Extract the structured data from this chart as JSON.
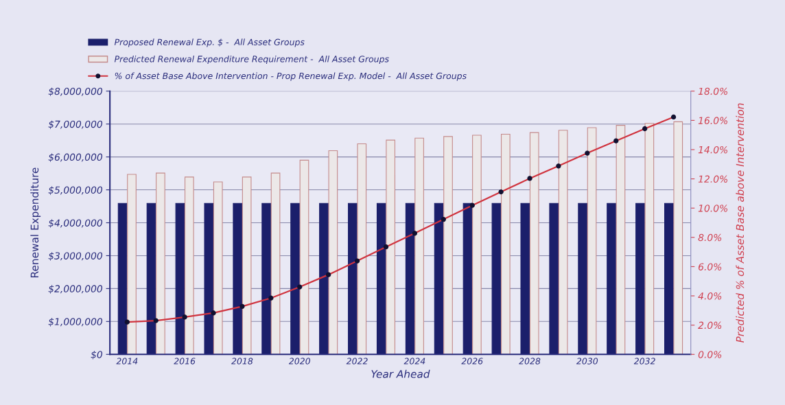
{
  "chart_data": {
    "type": "bar",
    "xlabel": "Year Ahead",
    "ylabel": "Renewal Expenditure",
    "y2label": "Predicted % of Asset Base above Intervention",
    "categories": [
      "2014",
      null,
      "2016",
      null,
      "2018",
      null,
      "2020",
      null,
      "2022",
      null,
      "2024",
      null,
      "2026",
      null,
      "2028",
      null,
      "2030",
      null,
      "2032",
      null
    ],
    "series": [
      {
        "name": "Proposed Renewal Exp. $ -  All Asset Groups",
        "color": "#1b1f6b",
        "values": [
          4590000,
          4590000,
          4590000,
          4590000,
          4590000,
          4590000,
          4590000,
          4590000,
          4590000,
          4590000,
          4590000,
          4590000,
          4590000,
          4590000,
          4590000,
          4590000,
          4590000,
          4590000,
          4590000,
          4590000
        ]
      },
      {
        "name": "Predicted Renewal Expenditure Requirement -  All Asset Groups",
        "color": "#ece8e8",
        "values": [
          5470000,
          5510000,
          5390000,
          5240000,
          5390000,
          5510000,
          5900000,
          6190000,
          6400000,
          6510000,
          6570000,
          6620000,
          6660000,
          6690000,
          6740000,
          6810000,
          6890000,
          6960000,
          7020000,
          7070000
        ]
      },
      {
        "name": "% of Asset Base Above Intervention - Prop Renewal Exp. Model -  All Asset Groups",
        "type": "line",
        "axis": "y2",
        "color": "#d0343f",
        "marker": "circle",
        "values": [
          2.21,
          2.31,
          2.55,
          2.83,
          3.28,
          3.85,
          4.61,
          5.45,
          6.39,
          7.35,
          8.28,
          9.23,
          10.19,
          11.11,
          12.03,
          12.88,
          13.76,
          14.6,
          15.43,
          16.23
        ]
      }
    ],
    "ylim": [
      0,
      8000000
    ],
    "yticks": [
      {
        "value": 0,
        "label": "$0"
      },
      {
        "value": 1000000,
        "label": "$1,000,000"
      },
      {
        "value": 2000000,
        "label": "$2,000,000"
      },
      {
        "value": 3000000,
        "label": "$3,000,000"
      },
      {
        "value": 4000000,
        "label": "$4,000,000"
      },
      {
        "value": 5000000,
        "label": "$5,000,000"
      },
      {
        "value": 6000000,
        "label": "$6,000,000"
      },
      {
        "value": 7000000,
        "label": "$7,000,000"
      },
      {
        "value": 8000000,
        "label": "$8,000,000"
      }
    ],
    "y2lim": [
      0,
      18
    ],
    "y2ticks": [
      {
        "value": 0,
        "label": "0.0%"
      },
      {
        "value": 2,
        "label": "2.0%"
      },
      {
        "value": 4,
        "label": "4.0%"
      },
      {
        "value": 6,
        "label": "6.0%"
      },
      {
        "value": 8,
        "label": "8.0%"
      },
      {
        "value": 10,
        "label": "10.0%"
      },
      {
        "value": 12,
        "label": "12.0%"
      },
      {
        "value": 14,
        "label": "14.0%"
      },
      {
        "value": 16,
        "label": "16.0%"
      },
      {
        "value": 18,
        "label": "18.0%"
      }
    ],
    "grid": "y",
    "legend": "top left"
  }
}
